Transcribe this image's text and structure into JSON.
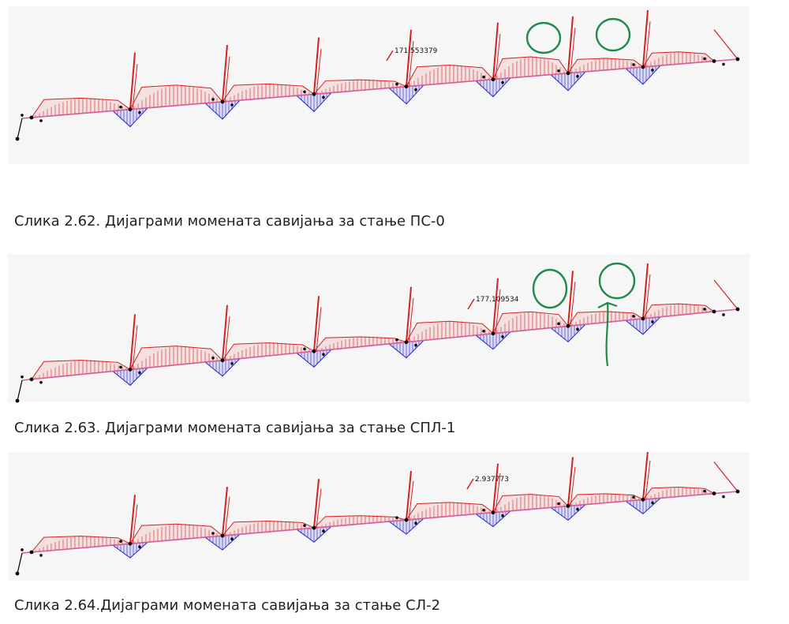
{
  "colors": {
    "positive": "#d42020",
    "negative": "#2424c8",
    "member": "#d85a9a",
    "support": "#000000",
    "annotation": "#1f8a4c",
    "panel_bg": "#f6f6f6"
  },
  "figures": [
    {
      "caption": "Слика 2.62. Дијаграми момената савијања за стање ПС-0",
      "peak_label": "171.553379",
      "circles": 2,
      "arrow": false
    },
    {
      "caption": "Слика 2.63. Дијаграми момената савијања за стање СПЛ-1",
      "peak_label": "177.109534",
      "circles": 2,
      "arrow": true
    },
    {
      "caption": "Слика 2.64.Дијаграми момената савијања за стање СЛ-2",
      "peak_label": "2.937773",
      "circles": 0,
      "arrow": false
    }
  ]
}
